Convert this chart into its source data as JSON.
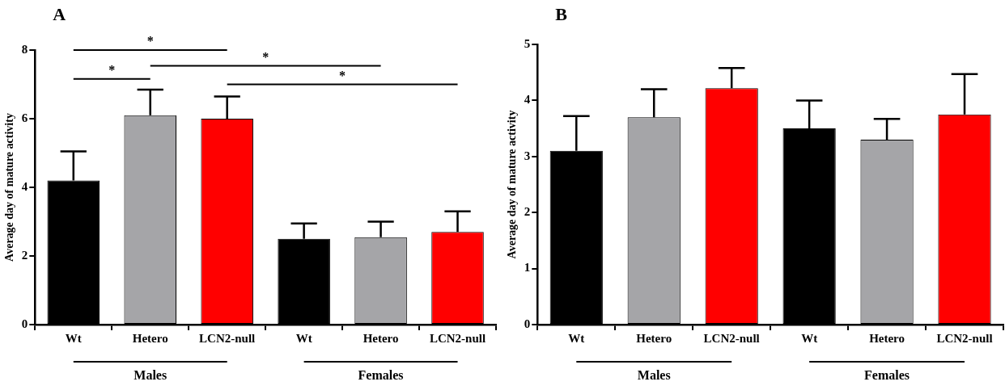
{
  "chart_data": [
    {
      "type": "bar",
      "title": "A",
      "ylabel": "Average day of mature activity",
      "categories": [
        "Wt",
        "Hetero",
        "LCN2-null",
        "Wt",
        "Hetero",
        "LCN2-null"
      ],
      "values": [
        4.2,
        6.1,
        6.0,
        2.5,
        2.55,
        2.7
      ],
      "colors": [
        "#000000",
        "#a5a5a8",
        "#ff0000",
        "#000000",
        "#a5a5a8",
        "#ff0000"
      ],
      "errors": [
        [
          4.2,
          5.05
        ],
        [
          6.1,
          6.85
        ],
        [
          6.0,
          6.65
        ],
        [
          2.5,
          2.95
        ],
        [
          2.55,
          3.0
        ],
        [
          2.7,
          3.3
        ]
      ],
      "ylim": [
        0,
        8
      ],
      "yticks": [
        0,
        2,
        4,
        6,
        8
      ],
      "grid": false,
      "legend": false,
      "annotations": [
        "*",
        "*",
        "*",
        "*",
        "Males",
        "Females"
      ]
    },
    {
      "type": "bar",
      "title": "B",
      "ylabel": "Average day of mature activity",
      "categories": [
        "Wt",
        "Hetero",
        "LCN2-null",
        "Wt",
        "Hetero",
        "LCN2-null"
      ],
      "values": [
        3.1,
        3.7,
        4.22,
        3.5,
        3.3,
        3.75
      ],
      "colors": [
        "#000000",
        "#a5a5a8",
        "#ff0000",
        "#000000",
        "#a5a5a8",
        "#ff0000"
      ],
      "errors": [
        [
          3.1,
          3.72
        ],
        [
          3.7,
          4.2
        ],
        [
          4.22,
          4.58
        ],
        [
          3.5,
          4.0
        ],
        [
          3.3,
          3.67
        ],
        [
          3.75,
          4.47
        ]
      ],
      "ylim": [
        0,
        5
      ],
      "yticks": [
        0,
        1,
        2,
        3,
        4,
        5
      ],
      "grid": false,
      "legend": false,
      "annotations": [
        "Males",
        "Females"
      ]
    }
  ]
}
